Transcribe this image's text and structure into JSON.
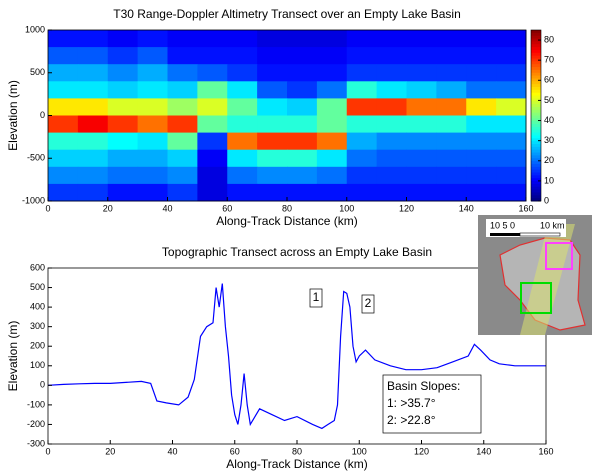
{
  "chart_data": [
    {
      "type": "heatmap",
      "title": "T30 Range-Doppler Altimetry Transect over an Empty Lake Basin",
      "x_label": "Along-Track Distance (km)",
      "y_label": "Elevation (m)",
      "x": [
        5,
        15,
        25,
        35,
        45,
        55,
        65,
        75,
        85,
        95,
        105,
        115,
        125,
        135,
        145,
        155
      ],
      "y": [
        900,
        700,
        500,
        300,
        100,
        -100,
        -300,
        -500,
        -700,
        -900
      ],
      "values": [
        [
          12,
          12,
          10,
          12,
          10,
          10,
          10,
          8,
          8,
          8,
          10,
          10,
          10,
          10,
          10,
          10
        ],
        [
          18,
          18,
          15,
          18,
          12,
          12,
          12,
          10,
          10,
          10,
          12,
          12,
          12,
          12,
          12,
          12
        ],
        [
          25,
          25,
          22,
          25,
          20,
          18,
          15,
          12,
          12,
          12,
          15,
          15,
          15,
          15,
          15,
          15
        ],
        [
          30,
          30,
          28,
          30,
          28,
          40,
          30,
          18,
          15,
          20,
          35,
          30,
          28,
          25,
          20,
          20
        ],
        [
          55,
          55,
          50,
          50,
          45,
          50,
          40,
          30,
          28,
          40,
          70,
          70,
          65,
          65,
          55,
          50
        ],
        [
          70,
          75,
          70,
          65,
          70,
          40,
          35,
          35,
          35,
          40,
          35,
          35,
          35,
          35,
          30,
          30
        ],
        [
          35,
          35,
          32,
          30,
          40,
          15,
          65,
          70,
          70,
          65,
          25,
          22,
          22,
          22,
          22,
          22
        ],
        [
          28,
          28,
          25,
          25,
          28,
          10,
          30,
          35,
          35,
          30,
          20,
          18,
          18,
          18,
          18,
          18
        ],
        [
          22,
          22,
          20,
          20,
          22,
          8,
          20,
          22,
          22,
          20,
          15,
          15,
          15,
          15,
          15,
          15
        ],
        [
          15,
          15,
          12,
          12,
          15,
          8,
          12,
          12,
          12,
          12,
          12,
          12,
          12,
          12,
          12,
          12
        ]
      ],
      "colormap": "jet",
      "clim": [
        0,
        85
      ],
      "cticks": [
        0,
        10,
        20,
        30,
        40,
        50,
        60,
        70,
        80
      ],
      "xlim": [
        0,
        160
      ],
      "xticks": [
        0,
        20,
        40,
        60,
        80,
        100,
        120,
        140,
        160
      ],
      "ylim": [
        -1000,
        1000
      ],
      "yticks": [
        -1000,
        -500,
        0,
        500,
        1000
      ]
    },
    {
      "type": "line",
      "title": "Topographic Transect across an Empty Lake Basin",
      "x_label": "Along-Track Distance (km)",
      "y_label": "Elevation (m)",
      "color": "#0000ff",
      "x": [
        0,
        5,
        10,
        15,
        20,
        25,
        30,
        33,
        35,
        38,
        42,
        45,
        47,
        49,
        51,
        53,
        54,
        55,
        56,
        57,
        58,
        59,
        60,
        61,
        62,
        63,
        64,
        65,
        68,
        72,
        76,
        80,
        85,
        88,
        90,
        92,
        93,
        94,
        95,
        96,
        97,
        98,
        99,
        100,
        102,
        105,
        110,
        115,
        120,
        125,
        130,
        135,
        137,
        139,
        142,
        145,
        150,
        155,
        160
      ],
      "values": [
        0,
        5,
        8,
        10,
        10,
        15,
        20,
        10,
        -80,
        -90,
        -100,
        -60,
        30,
        250,
        300,
        320,
        500,
        400,
        520,
        300,
        150,
        -50,
        -150,
        -200,
        -100,
        60,
        -100,
        -200,
        -120,
        -150,
        -180,
        -160,
        -200,
        -220,
        -200,
        -180,
        -100,
        250,
        480,
        470,
        400,
        200,
        120,
        150,
        180,
        130,
        100,
        80,
        80,
        90,
        120,
        150,
        210,
        180,
        130,
        110,
        100,
        100,
        100
      ],
      "xlim": [
        0,
        160
      ],
      "xticks": [
        0,
        20,
        40,
        60,
        80,
        100,
        120,
        140,
        160
      ],
      "ylim": [
        -300,
        600
      ],
      "yticks": [
        -300,
        -200,
        -100,
        0,
        100,
        200,
        300,
        400,
        500,
        600
      ],
      "annotations": [
        "1",
        "2"
      ],
      "legend_box": [
        "Basin Slopes:",
        "1: >35.7°",
        "2: >22.8°"
      ]
    }
  ],
  "inset": {
    "scale_labels": [
      "10 5 0",
      "10 km"
    ]
  }
}
